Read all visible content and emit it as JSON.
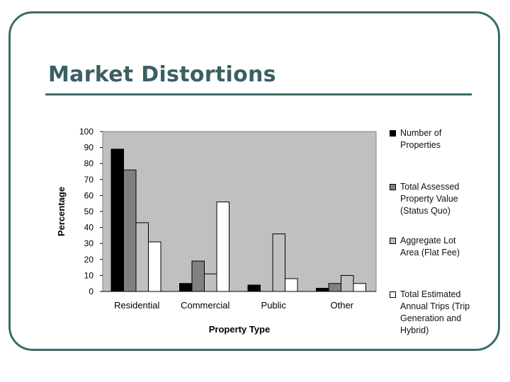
{
  "slide": {
    "title": "Market Distortions"
  },
  "chart_data": {
    "type": "bar",
    "title": "",
    "xlabel": "Property Type",
    "ylabel": "Percentage",
    "ylim": [
      0,
      100
    ],
    "yticks": [
      "100",
      "90",
      "80",
      "70",
      "60",
      "50",
      "40",
      "30",
      "20",
      "10",
      "0"
    ],
    "categories": [
      "Residential",
      "Commercial",
      "Public",
      "Other"
    ],
    "series": [
      {
        "name": "Number of Properties",
        "color": "#000000",
        "values": [
          89,
          5,
          4,
          2
        ]
      },
      {
        "name": "Total Assessed Property Value (Status Quo)",
        "color": "#808080",
        "values": [
          76,
          19,
          0,
          5
        ]
      },
      {
        "name": "Aggregate Lot Area (Flat Fee)",
        "color": "#c0c0c0",
        "values": [
          43,
          11,
          36,
          10
        ]
      },
      {
        "name": "Total Estimated Annual Trips (Trip Generation and Hybrid)",
        "color": "#ffffff",
        "values": [
          31,
          56,
          8,
          5
        ]
      }
    ],
    "grid": false,
    "legend_position": "right"
  }
}
